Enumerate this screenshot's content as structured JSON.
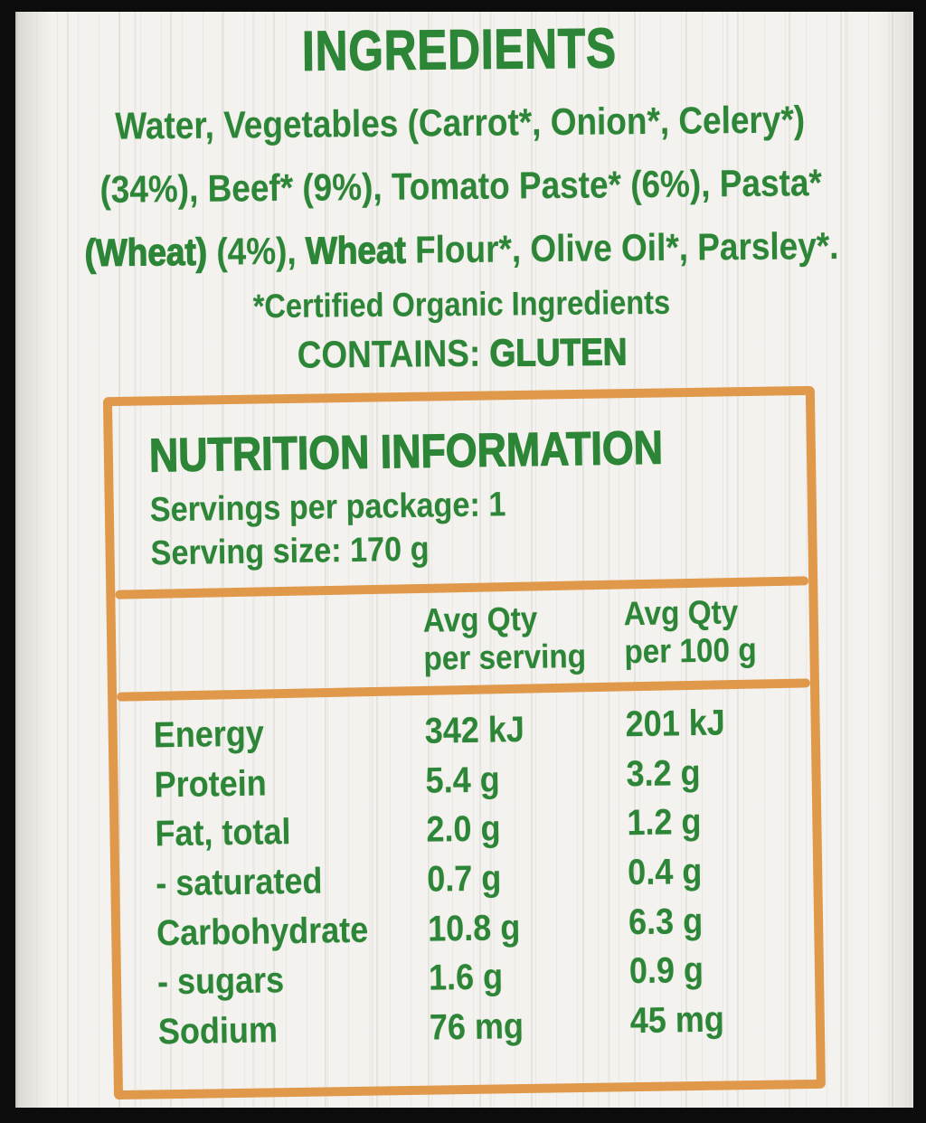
{
  "colors": {
    "green": "#2d8637",
    "orange": "#e0994b",
    "label_bg": "#f4f2ee",
    "frame": "#0c0c0c"
  },
  "ingredients": {
    "title": "INGREDIENTS",
    "line1": "Water, Vegetables (Carrot*, Onion*, Celery*)",
    "line2": "(34%), Beef* (9%), Tomato Paste* (6%), Pasta*",
    "line3": {
      "allergen1": "(Wheat)",
      "mid1": "(4%),",
      "allergen2": "Wheat",
      "rest": "Flour*, Olive Oil*, Parsley*."
    },
    "organic_note": "*Certified Organic Ingredients",
    "contains_label": "CONTAINS:",
    "contains_value": "GLUTEN"
  },
  "nutrition": {
    "title": "NUTRITION INFORMATION",
    "servings_per_package": "Servings per package: 1",
    "serving_size": "Serving size: 170 g",
    "columns": [
      {
        "line1": "Avg Qty",
        "line2": "per serving"
      },
      {
        "line1": "Avg Qty",
        "line2": "per 100 g"
      }
    ],
    "rows": [
      {
        "label": "Energy",
        "per_serving": "342 kJ",
        "per_100g": "201 kJ"
      },
      {
        "label": "Protein",
        "per_serving": "5.4 g",
        "per_100g": "3.2 g"
      },
      {
        "label": "Fat, total",
        "per_serving": "2.0 g",
        "per_100g": "1.2 g"
      },
      {
        "label": "- saturated",
        "per_serving": "0.7 g",
        "per_100g": "0.4 g"
      },
      {
        "label": "Carbohydrate",
        "per_serving": "10.8 g",
        "per_100g": "6.3 g"
      },
      {
        "label": "- sugars",
        "per_serving": "1.6 g",
        "per_100g": "0.9 g"
      },
      {
        "label": "Sodium",
        "per_serving": "76 mg",
        "per_100g": "45 mg"
      }
    ]
  }
}
